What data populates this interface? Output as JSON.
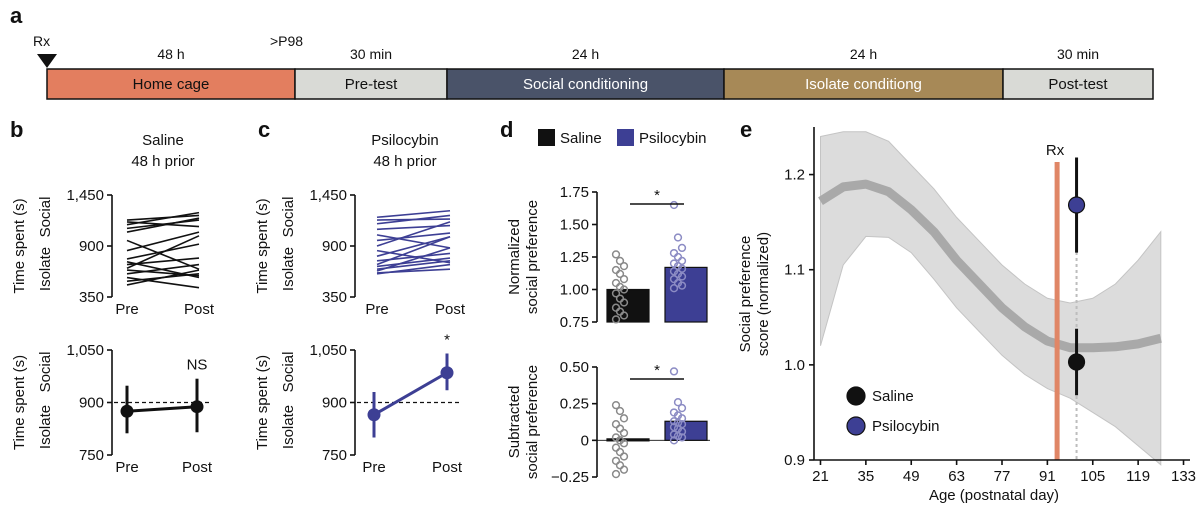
{
  "figure": {
    "panel_letters": {
      "a": "a",
      "b": "b",
      "c": "c",
      "d": "d",
      "e": "e"
    }
  },
  "chart_data": [
    {
      "id": "a",
      "type": "timeline",
      "rx_label": "Rx",
      "marker_label": ">P98",
      "segments": [
        {
          "duration": "48 h",
          "label": "Home cage",
          "color": "#e37e5f",
          "text_color": "#111111"
        },
        {
          "duration": "30 min",
          "label": "Pre-test",
          "color": "#d9dad6",
          "text_color": "#111111"
        },
        {
          "duration": "24 h",
          "label": "Social conditioning",
          "color": "#4a5369",
          "text_color": "#ffffff"
        },
        {
          "duration": "24 h",
          "label": "Isolate conditiong",
          "color": "#a78957",
          "text_color": "#ffffff"
        },
        {
          "duration": "30 min",
          "label": "Post-test",
          "color": "#d9dad6",
          "text_color": "#111111"
        }
      ]
    },
    {
      "id": "b_top",
      "type": "line",
      "title": "Saline",
      "subtitle": "48 h prior",
      "ylabel": "Time spent (s)",
      "ylabel_top": "Social",
      "ylabel_bottom": "Isolate",
      "categories": [
        "Pre",
        "Post"
      ],
      "ylim": [
        350,
        1450
      ],
      "ytick_labels": [
        "1,450",
        "900",
        "350"
      ],
      "ytick_values": [
        1450,
        900,
        350
      ],
      "line_color": "#111111",
      "series": [
        [
          1180,
          1230
        ],
        [
          1160,
          1110
        ],
        [
          1130,
          1260
        ],
        [
          1090,
          1180
        ],
        [
          1050,
          1200
        ],
        [
          960,
          650
        ],
        [
          850,
          1050
        ],
        [
          760,
          920
        ],
        [
          730,
          560
        ],
        [
          700,
          770
        ],
        [
          660,
          1010
        ],
        [
          640,
          580
        ],
        [
          600,
          700
        ],
        [
          560,
          450
        ],
        [
          520,
          600
        ],
        [
          480,
          640
        ]
      ]
    },
    {
      "id": "b_bottom",
      "type": "line",
      "ylabel": "Time spent (s)",
      "ylabel_top": "Social",
      "ylabel_bottom": "Isolate",
      "categories": [
        "Pre",
        "Post"
      ],
      "ylim": [
        750,
        1050
      ],
      "ytick_labels": [
        "1,050",
        "900",
        "750"
      ],
      "ytick_values": [
        1050,
        900,
        750
      ],
      "reference": 900,
      "color": "#111111",
      "means": [
        875,
        888
      ],
      "err_low": [
        812,
        815
      ],
      "err_high": [
        948,
        968
      ],
      "annotation": "NS"
    },
    {
      "id": "c_top",
      "type": "line",
      "title": "Psilocybin",
      "subtitle": "48 h prior",
      "ylabel": "Time spent (s)",
      "ylabel_top": "Social",
      "ylabel_bottom": "Isolate",
      "categories": [
        "Pre",
        "Post"
      ],
      "ylim": [
        350,
        1450
      ],
      "ytick_labels": [
        "1,450",
        "900",
        "350"
      ],
      "ytick_values": [
        1450,
        900,
        350
      ],
      "line_color": "#3d3f94",
      "series": [
        [
          1210,
          1280
        ],
        [
          1180,
          1190
        ],
        [
          1140,
          1230
        ],
        [
          1080,
          1120
        ],
        [
          1020,
          880
        ],
        [
          960,
          1040
        ],
        [
          900,
          1160
        ],
        [
          850,
          720
        ],
        [
          790,
          1000
        ],
        [
          740,
          820
        ],
        [
          700,
          1000
        ],
        [
          680,
          770
        ],
        [
          650,
          740
        ],
        [
          630,
          880
        ],
        [
          610,
          650
        ],
        [
          600,
          700
        ]
      ]
    },
    {
      "id": "c_bottom",
      "type": "line",
      "ylabel": "Time spent (s)",
      "ylabel_top": "Social",
      "ylabel_bottom": "Isolate",
      "categories": [
        "Pre",
        "Post"
      ],
      "ylim": [
        750,
        1050
      ],
      "ytick_labels": [
        "1,050",
        "900",
        "750"
      ],
      "ytick_values": [
        1050,
        900,
        750
      ],
      "reference": 900,
      "color": "#3d3f94",
      "means": [
        865,
        985
      ],
      "err_low": [
        800,
        935
      ],
      "err_high": [
        930,
        1040
      ],
      "annotation": "*"
    },
    {
      "id": "d_legend",
      "type": "legend",
      "entries": [
        {
          "label": "Saline",
          "color": "#111111"
        },
        {
          "label": "Psilocybin",
          "color": "#3d3f94"
        }
      ]
    },
    {
      "id": "d_top",
      "type": "bar",
      "ylabel_line1": "Normalized",
      "ylabel_line2": "social preference",
      "categories": [
        "Saline",
        "Psilocybin"
      ],
      "values": [
        1.0,
        1.17
      ],
      "bar_colors": [
        "#111111",
        "#3d3f94"
      ],
      "ylim": [
        0.75,
        1.75
      ],
      "ytick_labels": [
        "1.75",
        "1.50",
        "1.25",
        "1.00",
        "0.75"
      ],
      "ytick_values": [
        1.75,
        1.5,
        1.25,
        1.0,
        0.75
      ],
      "points": [
        [
          1.27,
          1.22,
          1.18,
          1.15,
          1.12,
          1.08,
          1.05,
          1.02,
          1.0,
          0.97,
          0.93,
          0.9,
          0.86,
          0.83,
          0.8,
          0.77
        ],
        [
          1.65,
          1.4,
          1.32,
          1.28,
          1.25,
          1.22,
          1.2,
          1.18,
          1.16,
          1.14,
          1.12,
          1.1,
          1.08,
          1.05,
          1.03,
          1.01
        ]
      ],
      "point_colors": [
        "#8a8a8a",
        "#8c8cc4"
      ],
      "significance": "*"
    },
    {
      "id": "d_bottom",
      "type": "bar",
      "ylabel_line1": "Subtracted",
      "ylabel_line2": "social preference",
      "categories": [
        "Saline",
        "Psilocybin"
      ],
      "values": [
        0.01,
        0.13
      ],
      "bar_colors": [
        "#111111",
        "#3d3f94"
      ],
      "ylim": [
        -0.25,
        0.5
      ],
      "ytick_labels": [
        "0.50",
        "0.25",
        "0",
        "−0.25"
      ],
      "ytick_values": [
        0.5,
        0.25,
        0,
        -0.25
      ],
      "points": [
        [
          0.24,
          0.2,
          0.15,
          0.11,
          0.08,
          0.05,
          0.02,
          0.0,
          -0.02,
          -0.05,
          -0.08,
          -0.11,
          -0.14,
          -0.17,
          -0.2,
          -0.23
        ],
        [
          0.47,
          0.26,
          0.22,
          0.19,
          0.17,
          0.15,
          0.13,
          0.12,
          0.11,
          0.09,
          0.08,
          0.06,
          0.04,
          0.03,
          0.02,
          0.0
        ]
      ],
      "point_colors": [
        "#8a8a8a",
        "#8c8cc4"
      ],
      "significance": "*"
    },
    {
      "id": "e",
      "type": "line",
      "ylabel_line1": "Social preference",
      "ylabel_line2": "score (normalized)",
      "xlabel": "Age (postnatal day)",
      "xlim": [
        19,
        135
      ],
      "ylim": [
        0.9,
        1.25
      ],
      "xtick_values": [
        21,
        35,
        49,
        63,
        77,
        91,
        105,
        119,
        133
      ],
      "xtick_labels": [
        "21",
        "35",
        "49",
        "63",
        "77",
        "91",
        "105",
        "119",
        "133"
      ],
      "ytick_values": [
        0.9,
        1.0,
        1.1,
        1.2
      ],
      "ytick_labels": [
        "0.9",
        "1.0",
        "1.1",
        "1.2"
      ],
      "fit_x": [
        21,
        28,
        35,
        42,
        49,
        56,
        63,
        70,
        77,
        84,
        91,
        98,
        105,
        112,
        119,
        126
      ],
      "fit_y": [
        1.172,
        1.187,
        1.19,
        1.182,
        1.163,
        1.14,
        1.11,
        1.085,
        1.06,
        1.04,
        1.025,
        1.018,
        1.018,
        1.019,
        1.022,
        1.028
      ],
      "band_low": [
        1.02,
        1.105,
        1.135,
        1.134,
        1.118,
        1.09,
        1.06,
        1.035,
        1.01,
        0.99,
        0.975,
        0.965,
        0.95,
        0.935,
        0.915,
        0.895
      ],
      "band_high": [
        1.24,
        1.245,
        1.245,
        1.235,
        1.21,
        1.185,
        1.155,
        1.13,
        1.105,
        1.085,
        1.07,
        1.065,
        1.07,
        1.085,
        1.11,
        1.14
      ],
      "rx_day": 94,
      "rx_label": "Rx",
      "rx_color": "#e08666",
      "test_day": 100,
      "points": [
        {
          "label": "Saline",
          "x": 100,
          "y": 1.003,
          "err_low": 0.968,
          "err_high": 1.038,
          "color": "#111111"
        },
        {
          "label": "Psilocybin",
          "x": 100,
          "y": 1.168,
          "err_low": 1.118,
          "err_high": 1.218,
          "color": "#3d3f94"
        }
      ]
    }
  ]
}
